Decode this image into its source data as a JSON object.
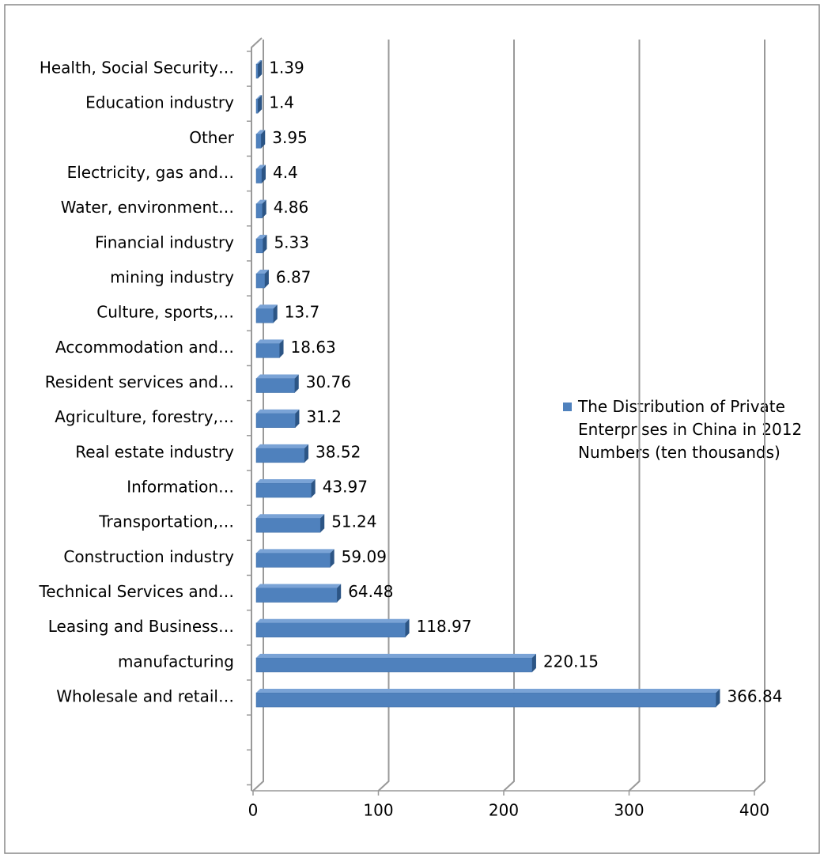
{
  "chart_data": {
    "type": "bar",
    "orientation": "horizontal",
    "categories": [
      "Health, Social Security…",
      "Education industry",
      "Other",
      "Electricity, gas and…",
      "Water, environment…",
      "Financial industry",
      "mining industry",
      "Culture, sports,…",
      "Accommodation and…",
      "Resident services and…",
      "Agriculture, forestry,…",
      "Real estate industry",
      "Information…",
      "Transportation,…",
      "Construction industry",
      "Technical Services and…",
      "Leasing and Business…",
      "manufacturing",
      "Wholesale and retail…"
    ],
    "series": [
      {
        "name": "The Distribution of Private Enterprises in China in 2012 Numbers (ten thousands)",
        "color": "#4f81bd",
        "values": [
          1.39,
          1.4,
          3.95,
          4.4,
          4.86,
          5.33,
          6.87,
          13.7,
          18.63,
          30.76,
          31.2,
          38.52,
          43.97,
          51.24,
          59.09,
          64.48,
          118.97,
          220.15,
          366.84
        ]
      }
    ],
    "xlim": [
      0,
      400
    ],
    "xticks": [
      0,
      100,
      200,
      300,
      400
    ],
    "grid": true,
    "legend": "right"
  }
}
